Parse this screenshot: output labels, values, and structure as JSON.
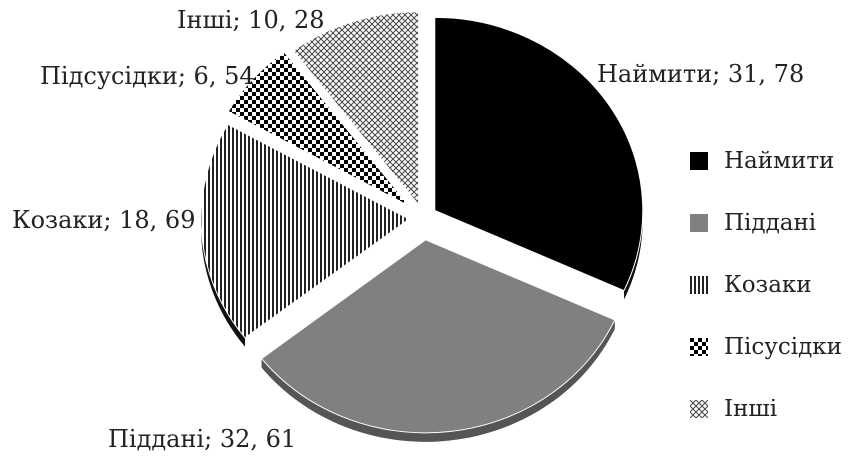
{
  "chart_data": {
    "type": "pie",
    "slices": [
      {
        "name": "Наймити",
        "value": 31.78,
        "label": "Наймити; 31, 78",
        "color": "#000000",
        "pattern": "solid"
      },
      {
        "name": "Піддані",
        "value": 32.61,
        "label": "Піддані; 32, 61",
        "color": "#808080",
        "pattern": "solid"
      },
      {
        "name": "Козаки",
        "value": 18.69,
        "label": "Козаки; 18, 69",
        "color": "#333333",
        "pattern": "vertical-lines"
      },
      {
        "name": "Підсусідки",
        "value": 6.54,
        "label": "Підсусідки; 6, 54",
        "color": "#000000",
        "pattern": "checker"
      },
      {
        "name": "Інші",
        "value": 10.28,
        "label": "Інші; 10, 28",
        "color": "#555555",
        "pattern": "crosshatch"
      }
    ],
    "legend": {
      "placement": "right",
      "items": [
        {
          "label": "Наймити",
          "swatch": "solid-black"
        },
        {
          "label": "Піддані",
          "swatch": "solid-gray"
        },
        {
          "label": "Козаки",
          "swatch": "vertical-lines"
        },
        {
          "label": "Пісусідки",
          "swatch": "checker"
        },
        {
          "label": "Інші",
          "swatch": "crosshatch"
        }
      ]
    },
    "exploded": true,
    "three_d": true
  }
}
